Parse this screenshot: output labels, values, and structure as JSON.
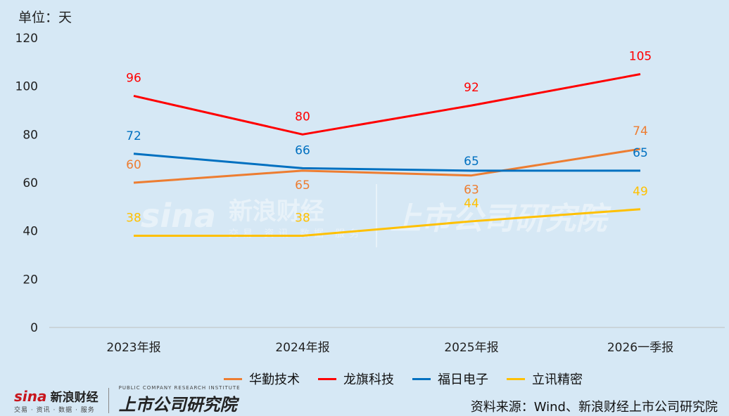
{
  "unit_label": "单位：天",
  "source": "资料来源：Wind、新浪财经上市公司研究院",
  "logo": {
    "brand_mark": "sina",
    "brand_cn": "新浪财经",
    "brand_sub": "交易 · 资讯 · 数据 · 服务",
    "research_en": "PUBLIC COMPANY RESEARCH INSTITUTE",
    "research_cn": "上市公司研究院"
  },
  "watermark": {
    "brand_mark": "sina",
    "brand_cn": "新浪财经",
    "brand_sub": "交易 资讯 数据 服务",
    "research_cn": "上市公司研究院"
  },
  "chart_data": {
    "type": "line",
    "categories": [
      "2023年报",
      "2024年报",
      "2025年报",
      "2026一季报"
    ],
    "ylim": [
      0,
      120
    ],
    "yticks": [
      0,
      20,
      40,
      60,
      80,
      100,
      120
    ],
    "grid": false,
    "legend_position": "bottom",
    "series": [
      {
        "name": "华勤技术",
        "color": "#ed7d31",
        "values": [
          60,
          65,
          63,
          74
        ]
      },
      {
        "name": "龙旗科技",
        "color": "#ff0000",
        "values": [
          96,
          80,
          92,
          105
        ]
      },
      {
        "name": "福日电子",
        "color": "#0070c0",
        "values": [
          72,
          66,
          65,
          65
        ]
      },
      {
        "name": "立讯精密",
        "color": "#ffc000",
        "values": [
          38,
          38,
          44,
          49
        ]
      }
    ]
  }
}
